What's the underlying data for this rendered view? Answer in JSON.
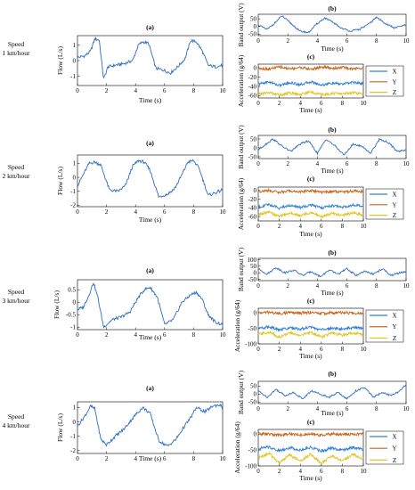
{
  "rows": [
    {
      "speed_label": [
        "Speed",
        "1 km/hour"
      ],
      "flow": {
        "panel": "(a)",
        "ylabel": "Flow (L/s)",
        "xlabel": "Time (s)",
        "yticks": [
          -1,
          0,
          1
        ],
        "ylim": [
          -1.6,
          1.6
        ],
        "xticks": [
          0,
          2,
          4,
          6,
          8,
          10
        ]
      },
      "band": {
        "panel": "(b)",
        "ylabel": "Band output (V)",
        "xlabel": "Time (s)",
        "yticks": [
          -50,
          0,
          50
        ],
        "ylim": [
          -60,
          80
        ],
        "xticks": [
          0,
          2,
          4,
          6,
          8,
          10
        ]
      },
      "accel": {
        "panel": "(c)",
        "ylabel": "Acceleration (g/64)",
        "xlabel": "Time (s)",
        "yticks": [
          -60,
          -40,
          -20,
          0
        ],
        "ylim": [
          -65,
          8
        ],
        "xticks": [
          0,
          2,
          4,
          6,
          8,
          10
        ],
        "legend": [
          "X",
          "Y",
          "Z"
        ]
      }
    },
    {
      "speed_label": [
        "Speed",
        "2 km/hour"
      ],
      "flow": {
        "panel": "(a)",
        "ylabel": "Flow (L/s)",
        "xlabel": "Time (s)",
        "yticks": [
          -2,
          -1,
          0,
          1
        ],
        "ylim": [
          -2.1,
          1.6
        ],
        "xticks": [
          0,
          2,
          4,
          6,
          8,
          10
        ]
      },
      "band": {
        "panel": "(b)",
        "ylabel": "Band output (V)",
        "xlabel": "Time (s)",
        "yticks": [
          -50,
          0,
          50
        ],
        "ylim": [
          -60,
          70
        ],
        "xticks": [
          0,
          2,
          4,
          6,
          8,
          10
        ]
      },
      "accel": {
        "panel": "(c)",
        "ylabel": "Acceleration (g/64)",
        "xlabel": "Time (s)",
        "yticks": [
          -60,
          -40,
          -20,
          0
        ],
        "ylim": [
          -70,
          8
        ],
        "xticks": [
          0,
          2,
          4,
          6,
          8,
          10
        ],
        "legend": [
          "X",
          "Y",
          "Z"
        ]
      }
    },
    {
      "speed_label": [
        "Speed",
        "3 km/hour"
      ],
      "flow": {
        "panel": "(a)",
        "ylabel": "Flow (L/s)",
        "xlabel": "Time (s)",
        "yticks": [
          -1,
          -0.5,
          0,
          0.5
        ],
        "ylim": [
          -1.1,
          0.9
        ],
        "xticks": [
          0,
          2,
          4,
          6,
          8,
          10
        ]
      },
      "band": {
        "panel": "(b)",
        "ylabel": "Band output (V)",
        "xlabel": "Time (s)",
        "yticks": [
          -50,
          0,
          50,
          100
        ],
        "ylim": [
          -60,
          110
        ],
        "xticks": [
          0,
          2,
          4,
          6,
          8,
          10
        ]
      },
      "accel": {
        "panel": "(c)",
        "ylabel": "Acceleration (g/64)",
        "xlabel": "Time (s)",
        "yticks": [
          -100,
          -50,
          0
        ],
        "ylim": [
          -100,
          15
        ],
        "xticks": [
          0,
          2,
          4,
          6,
          8,
          10
        ],
        "legend": [
          "X",
          "Y",
          "Z"
        ]
      }
    },
    {
      "speed_label": [
        "Speed",
        "4 km/hour"
      ],
      "flow": {
        "panel": "(a)",
        "ylabel": "Flow (L/s)",
        "xlabel": "Time (s)",
        "yticks": [
          -2,
          -1,
          0,
          1
        ],
        "ylim": [
          -2.2,
          1.4
        ],
        "xticks": [
          0,
          2,
          4,
          6,
          8,
          10
        ]
      },
      "band": {
        "panel": "(b)",
        "ylabel": "Band output (V)",
        "xlabel": "Time (s)",
        "yticks": [
          -50,
          0,
          50
        ],
        "ylim": [
          -60,
          80
        ],
        "xticks": [
          0,
          2,
          4,
          6,
          8,
          10
        ]
      },
      "accel": {
        "panel": "(c)",
        "ylabel": "Acceleration (g/64)",
        "xlabel": "Time (s)",
        "yticks": [
          -100,
          -50,
          0
        ],
        "ylim": [
          -100,
          15
        ],
        "xticks": [
          0,
          2,
          4,
          6,
          8,
          10
        ],
        "legend": [
          "X",
          "Y",
          "Z"
        ]
      }
    }
  ],
  "colors": {
    "flow": "#2b6cc4",
    "X": "#2f7fd4",
    "Y": "#c8651b",
    "Z": "#e2c31f"
  },
  "chart_data": [
    {
      "type": "line",
      "row": 1,
      "panel": "(a)",
      "ylabel": "Flow (L/s)",
      "xlabel": "Time (s)",
      "x": [
        0,
        0.5,
        0.9,
        1.2,
        1.5,
        1.8,
        2.1,
        2.6,
        3.2,
        3.8,
        4.2,
        4.5,
        4.9,
        5.4,
        5.9,
        6.4,
        6.9,
        7.4,
        7.8,
        8.2,
        8.6,
        9.0,
        9.5,
        10.0
      ],
      "series": [
        {
          "values": [
            0.2,
            0.3,
            0.6,
            1.4,
            1.3,
            -1.2,
            -0.4,
            -0.3,
            -0.2,
            0.0,
            1.0,
            1.2,
            1.1,
            -0.5,
            -0.6,
            -0.8,
            -0.4,
            0.1,
            1.3,
            1.2,
            0.6,
            -0.3,
            -0.4,
            -0.3
          ]
        }
      ]
    },
    {
      "type": "line",
      "row": 1,
      "panel": "(b)",
      "ylabel": "Band output (V)",
      "xlabel": "Time (s)",
      "x": [
        0,
        0.6,
        1.2,
        1.6,
        2.2,
        2.8,
        3.4,
        4.0,
        4.5,
        5.0,
        5.6,
        6.2,
        6.8,
        7.4,
        8.0,
        8.6,
        9.2,
        10.0
      ],
      "series": [
        {
          "values": [
            10,
            -20,
            30,
            70,
            20,
            -30,
            -40,
            20,
            55,
            30,
            -10,
            -30,
            -20,
            10,
            60,
            20,
            -10,
            10
          ]
        }
      ]
    },
    {
      "type": "line",
      "row": 1,
      "panel": "(c)",
      "ylabel": "Acceleration (g/64)",
      "xlabel": "Time (s)",
      "x": [
        0,
        1,
        2,
        3,
        4,
        5,
        6,
        7,
        8,
        9,
        10
      ],
      "series": [
        {
          "name": "X",
          "values": [
            -35,
            -30,
            -38,
            -32,
            -36,
            -30,
            -37,
            -33,
            -35,
            -31,
            -34
          ]
        },
        {
          "name": "Y",
          "values": [
            0,
            -3,
            2,
            -2,
            1,
            -3,
            2,
            -1,
            1,
            -2,
            0
          ]
        },
        {
          "name": "Z",
          "values": [
            -57,
            -53,
            -58,
            -54,
            -57,
            -52,
            -58,
            -55,
            -56,
            -53,
            -57
          ]
        }
      ]
    },
    {
      "type": "line",
      "row": 2,
      "panel": "(a)",
      "ylabel": "Flow (L/s)",
      "xlabel": "Time (s)",
      "x": [
        0,
        0.4,
        0.8,
        1.2,
        1.6,
        2.2,
        2.8,
        3.3,
        3.8,
        4.2,
        4.6,
        5.0,
        5.6,
        6.2,
        6.7,
        7.2,
        7.6,
        8.0,
        8.4,
        9.0,
        9.5,
        10.0
      ],
      "series": [
        {
          "values": [
            -0.6,
            0.2,
            1.0,
            1.1,
            0.9,
            -0.9,
            -1.0,
            -0.6,
            0.8,
            1.2,
            1.1,
            0.5,
            -1.4,
            -1.2,
            -0.8,
            0.2,
            1.1,
            1.2,
            0.6,
            -1.3,
            -1.1,
            -0.9
          ]
        }
      ]
    },
    {
      "type": "line",
      "row": 2,
      "panel": "(b)",
      "ylabel": "Band output (V)",
      "xlabel": "Time (s)",
      "x": [
        0,
        0.5,
        1.0,
        1.6,
        2.2,
        2.8,
        3.4,
        4.0,
        4.6,
        5.2,
        5.8,
        6.4,
        7.0,
        7.6,
        8.2,
        8.8,
        9.4,
        10.0
      ],
      "series": [
        {
          "values": [
            -10,
            20,
            50,
            10,
            -20,
            20,
            40,
            -30,
            50,
            10,
            -40,
            20,
            10,
            -30,
            50,
            30,
            -20,
            -10
          ]
        }
      ]
    },
    {
      "type": "line",
      "row": 2,
      "panel": "(c)",
      "ylabel": "Acceleration (g/64)",
      "xlabel": "Time (s)",
      "x": [
        0,
        1,
        2,
        3,
        4,
        5,
        6,
        7,
        8,
        9,
        10
      ],
      "series": [
        {
          "name": "X",
          "values": [
            -38,
            -32,
            -40,
            -34,
            -39,
            -33,
            -40,
            -35,
            -38,
            -33,
            -37
          ]
        },
        {
          "name": "Y",
          "values": [
            -2,
            0,
            -4,
            -1,
            -3,
            0,
            -4,
            -2,
            -3,
            -1,
            -2
          ]
        },
        {
          "name": "Z",
          "values": [
            -55,
            -50,
            -60,
            -52,
            -58,
            -50,
            -60,
            -53,
            -57,
            -51,
            -56
          ]
        }
      ]
    },
    {
      "type": "line",
      "row": 3,
      "panel": "(a)",
      "ylabel": "Flow (L/s)",
      "xlabel": "Time (s)",
      "x": [
        0,
        0.4,
        0.8,
        1.1,
        1.4,
        1.8,
        2.4,
        3.0,
        3.6,
        4.2,
        4.6,
        5.0,
        5.5,
        6.0,
        6.6,
        7.2,
        7.8,
        8.2,
        8.6,
        9.0,
        9.5,
        10.0
      ],
      "series": [
        {
          "values": [
            -0.3,
            -0.2,
            0.3,
            0.8,
            0.2,
            -1.0,
            -0.7,
            -0.6,
            -0.4,
            0.2,
            0.5,
            0.6,
            0.2,
            -0.9,
            -0.7,
            0.0,
            0.3,
            0.4,
            0.1,
            -0.5,
            -0.8,
            -0.9
          ]
        }
      ]
    },
    {
      "type": "line",
      "row": 3,
      "panel": "(b)",
      "ylabel": "Band output (V)",
      "xlabel": "Time (s)",
      "x": [
        0,
        0.6,
        1.2,
        1.8,
        2.4,
        3.0,
        3.6,
        4.2,
        4.8,
        5.4,
        6.0,
        6.6,
        7.2,
        7.8,
        8.4,
        9.0,
        9.6,
        10.0
      ],
      "series": [
        {
          "values": [
            30,
            -10,
            40,
            0,
            20,
            -20,
            10,
            -30,
            20,
            -10,
            30,
            -20,
            10,
            -10,
            30,
            -20,
            0,
            10
          ]
        }
      ]
    },
    {
      "type": "line",
      "row": 3,
      "panel": "(c)",
      "ylabel": "Acceleration (g/64)",
      "xlabel": "Time (s)",
      "x": [
        0,
        1,
        2,
        3,
        4,
        5,
        6,
        7,
        8,
        9,
        10
      ],
      "series": [
        {
          "name": "X",
          "values": [
            -50,
            -45,
            -55,
            -48,
            -52,
            -46,
            -55,
            -49,
            -52,
            -47,
            -50
          ]
        },
        {
          "name": "Y",
          "values": [
            0,
            2,
            -2,
            1,
            -1,
            2,
            -2,
            0,
            1,
            -1,
            0
          ]
        },
        {
          "name": "Z",
          "values": [
            -70,
            -62,
            -78,
            -65,
            -72,
            -63,
            -77,
            -66,
            -72,
            -64,
            -70
          ]
        }
      ]
    },
    {
      "type": "line",
      "row": 4,
      "panel": "(a)",
      "ylabel": "Flow (L/s)",
      "xlabel": "Time (s)",
      "x": [
        0,
        0.5,
        0.9,
        1.2,
        1.6,
        2.0,
        2.6,
        3.2,
        3.6,
        4.0,
        4.5,
        5.0,
        5.6,
        6.2,
        6.8,
        7.3,
        7.8,
        8.2,
        8.8,
        9.3,
        9.8,
        10.0
      ],
      "series": [
        {
          "values": [
            -0.3,
            0.4,
            1.1,
            0.9,
            -1.2,
            -1.6,
            -1.0,
            -0.5,
            0.0,
            0.5,
            1.0,
            0.6,
            -1.3,
            -1.7,
            -1.2,
            -0.4,
            0.3,
            1.0,
            0.7,
            1.1,
            1.2,
            1.0
          ]
        }
      ]
    },
    {
      "type": "line",
      "row": 4,
      "panel": "(b)",
      "ylabel": "Band output (V)",
      "xlabel": "Time (s)",
      "x": [
        0,
        0.6,
        1.2,
        1.8,
        2.4,
        3.0,
        3.6,
        4.2,
        4.8,
        5.4,
        6.0,
        6.6,
        7.2,
        7.8,
        8.4,
        9.0,
        9.6,
        10.0
      ],
      "series": [
        {
          "values": [
            20,
            -20,
            30,
            -10,
            10,
            -30,
            20,
            0,
            -20,
            10,
            -30,
            20,
            40,
            -20,
            10,
            -10,
            20,
            60
          ]
        }
      ]
    },
    {
      "type": "line",
      "row": 4,
      "panel": "(c)",
      "ylabel": "Acceleration (g/64)",
      "xlabel": "Time (s)",
      "x": [
        0,
        1,
        2,
        3,
        4,
        5,
        6,
        7,
        8,
        9,
        10
      ],
      "series": [
        {
          "name": "X",
          "values": [
            -45,
            -40,
            -52,
            -42,
            -50,
            -41,
            -53,
            -44,
            -50,
            -42,
            -48
          ]
        },
        {
          "name": "Y",
          "values": [
            2,
            0,
            -3,
            1,
            -2,
            0,
            -3,
            1,
            -1,
            0,
            1
          ]
        },
        {
          "name": "Z",
          "values": [
            -75,
            -60,
            -90,
            -65,
            -85,
            -62,
            -92,
            -68,
            -84,
            -63,
            -80
          ]
        }
      ]
    }
  ]
}
